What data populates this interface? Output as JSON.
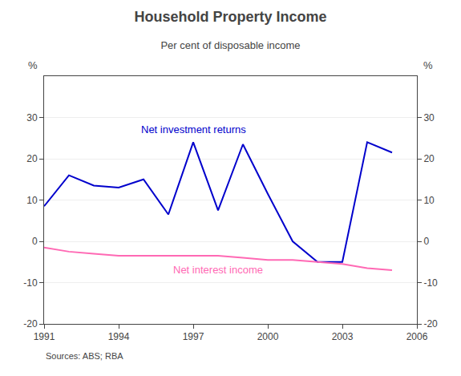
{
  "chart_data": {
    "type": "line",
    "title": "Household Property Income",
    "subtitle": "Per cent of disposable income",
    "source": "Sources: ABS; RBA",
    "ylabel": "%",
    "y2label": "%",
    "x": [
      1991,
      1992,
      1993,
      1994,
      1995,
      1996,
      1997,
      1998,
      1999,
      2000,
      2001,
      2002,
      2003,
      2004,
      2005
    ],
    "series": [
      {
        "name": "Net investment returns",
        "color": "#0000cc",
        "values": [
          8.5,
          16.0,
          13.5,
          13.0,
          15.0,
          6.5,
          24.0,
          7.5,
          23.5,
          11.5,
          0.0,
          -5.0,
          -5.0,
          24.0,
          21.5
        ]
      },
      {
        "name": "Net interest income",
        "color": "#ff69b4",
        "values": [
          -1.5,
          -2.5,
          -3.0,
          -3.5,
          -3.5,
          -3.5,
          -3.5,
          -3.5,
          -4.0,
          -4.5,
          -4.5,
          -5.0,
          -5.5,
          -6.5,
          -7.0
        ]
      }
    ],
    "xlim": [
      1991,
      2006
    ],
    "xticks": [
      1991,
      1994,
      1997,
      2000,
      2003,
      2006
    ],
    "ylim": [
      -20,
      40
    ],
    "yticks": [
      -20,
      -10,
      0,
      10,
      20,
      30
    ],
    "y2lim": [
      -20,
      40
    ],
    "y2ticks": [
      -20,
      -10,
      0,
      10,
      20,
      30
    ],
    "grid": true
  }
}
